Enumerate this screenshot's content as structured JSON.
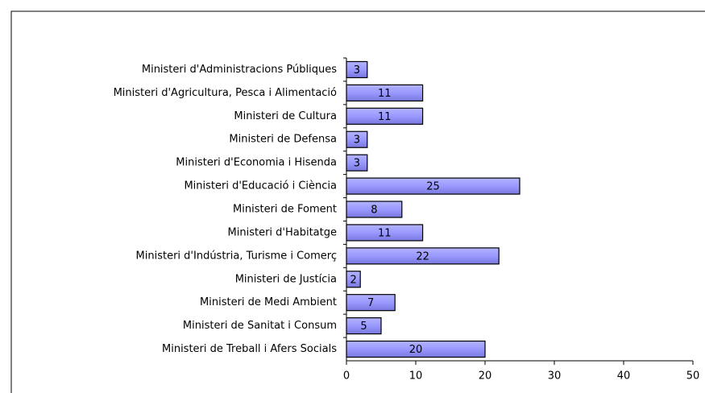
{
  "chart_data": {
    "type": "bar",
    "orientation": "horizontal",
    "categories": [
      "Ministeri d'Administracions Públiques",
      "Ministeri d'Agricultura, Pesca i Alimentació",
      "Ministeri de Cultura",
      "Ministeri de Defensa",
      "Ministeri d'Economia i Hisenda",
      "Ministeri d'Educació i Ciència",
      "Ministeri de Foment",
      "Ministeri d'Habitatge",
      "Ministeri d'Indústria, Turisme i Comerç",
      "Ministeri de Justícia",
      "Ministeri de Medi Ambient",
      "Ministeri de Sanitat i Consum",
      "Ministeri de Treball i Afers Socials"
    ],
    "values": [
      3,
      11,
      11,
      3,
      3,
      25,
      8,
      11,
      22,
      2,
      7,
      5,
      20
    ],
    "color": "#9999ff",
    "xlim": [
      0,
      50
    ],
    "xticks": [
      0,
      10,
      20,
      30,
      40,
      50
    ]
  }
}
